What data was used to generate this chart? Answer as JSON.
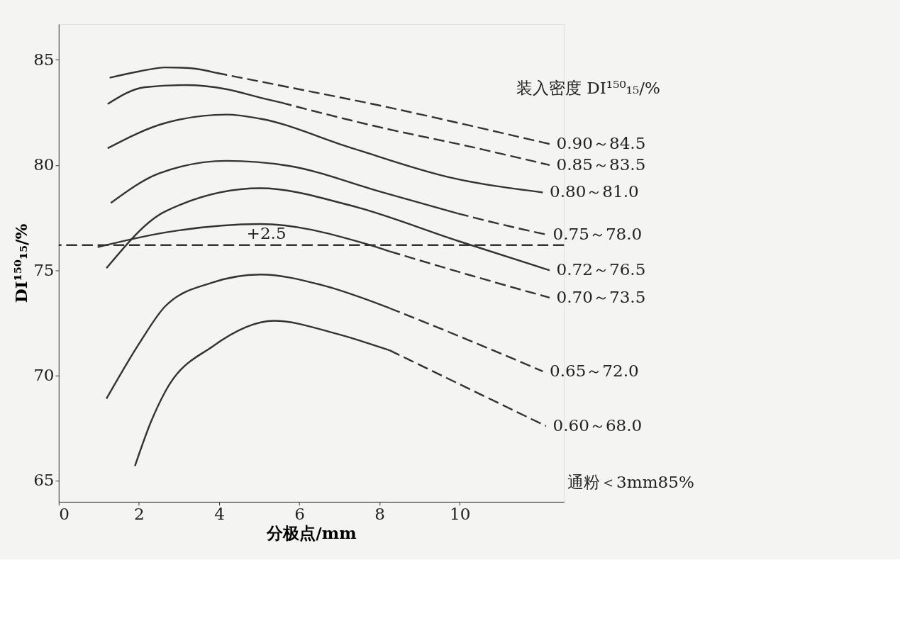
{
  "chart_data": {
    "type": "line",
    "xlabel": "分极点/mm",
    "ylabel": "DI¹⁵⁰₁₅/%",
    "legend_title": "装入密度  DI¹⁵⁰₁₅/%",
    "xlim": [
      0,
      12.6
    ],
    "ylim": [
      64,
      86.7
    ],
    "xticks": [
      0,
      2,
      4,
      6,
      8,
      10
    ],
    "yticks": [
      65,
      70,
      75,
      80,
      85
    ],
    "grid": false,
    "series": [
      {
        "color": "#333333",
        "line_style": "solid",
        "x": [
          1.27,
          2.0,
          2.66,
          3.3,
          3.93
        ],
        "values": [
          84.15,
          84.45,
          84.64,
          84.6,
          84.38
        ]
      },
      {
        "name": "0.90～84.5",
        "color": "#333333",
        "line_style": "dashed",
        "x": [
          3.93,
          6.0,
          8.08,
          10.2,
          12.24
        ],
        "values": [
          84.38,
          83.6,
          82.8,
          81.9,
          81.0
        ]
      },
      {
        "color": "#333333",
        "line_style": "solid",
        "x": [
          1.22,
          2.15,
          3.17,
          4.2,
          5.03,
          5.54
        ],
        "values": [
          82.9,
          83.7,
          83.8,
          83.6,
          83.2,
          82.97
        ]
      },
      {
        "name": "0.85～83.5",
        "color": "#333333",
        "line_style": "dashed",
        "x": [
          5.54,
          8.0,
          10.2,
          12.24
        ],
        "values": [
          82.97,
          81.8,
          80.9,
          80.0
        ]
      },
      {
        "name": "0.80～81.0",
        "color": "#333333",
        "line_style": "solid",
        "x": [
          1.22,
          2.66,
          4.19,
          5.03,
          7.24,
          9.78,
          12.07
        ],
        "values": [
          80.8,
          82.0,
          82.4,
          82.2,
          80.85,
          79.4,
          78.7
        ]
      },
      {
        "color": "#333333",
        "line_style": "solid",
        "x": [
          1.3,
          2.5,
          4.19,
          5.71,
          8.08,
          9.95
        ],
        "values": [
          78.2,
          79.6,
          80.2,
          79.97,
          78.7,
          77.7
        ]
      },
      {
        "name": "0.75～78.0",
        "color": "#333333",
        "line_style": "dashed",
        "x": [
          9.95,
          11.0,
          12.15
        ],
        "values": [
          77.7,
          77.2,
          76.7
        ]
      },
      {
        "name": "0.72～76.5",
        "color": "#333333",
        "line_style": "solid",
        "x": [
          1.19,
          2.66,
          5.03,
          7.24,
          9.95,
          12.24
        ],
        "values": [
          75.1,
          77.8,
          78.9,
          78.1,
          76.4,
          75.0
        ]
      },
      {
        "color": "#333333",
        "line_style": "solid",
        "x": [
          0.97,
          2.66,
          5.03,
          7.58,
          8.25
        ],
        "values": [
          76.1,
          76.8,
          77.2,
          76.3,
          75.9
        ]
      },
      {
        "name": "0.70～73.5",
        "color": "#333333",
        "line_style": "dashed",
        "x": [
          8.25,
          10.2,
          12.24
        ],
        "values": [
          75.9,
          74.8,
          73.7
        ]
      },
      {
        "color": "#333333",
        "line_style": "solid",
        "x": [
          1.19,
          2.0,
          2.66,
          3.8,
          5.03,
          6.56,
          8.25
        ],
        "values": [
          68.9,
          71.5,
          73.3,
          74.4,
          74.8,
          74.3,
          73.2
        ]
      },
      {
        "name": "0.65～72.0",
        "color": "#333333",
        "line_style": "dashed",
        "x": [
          8.25,
          10.2,
          12.07
        ],
        "values": [
          73.2,
          71.7,
          70.2
        ]
      },
      {
        "color": "#333333",
        "line_style": "solid",
        "x": [
          1.9,
          2.3,
          2.66,
          3.85,
          5.37,
          6.9,
          8.25
        ],
        "values": [
          65.7,
          67.8,
          69.25,
          71.4,
          72.6,
          72.0,
          71.2
        ]
      },
      {
        "name": "0.60～68.0",
        "color": "#333333",
        "line_style": "dashed",
        "x": [
          8.25,
          10.2,
          12.15
        ],
        "values": [
          71.2,
          69.4,
          67.6
        ]
      }
    ],
    "ref_lines": [
      {
        "axis": "y",
        "value": 76.2,
        "color": "#333333",
        "line_style": "dashed"
      }
    ],
    "annotations": [
      "+2.5",
      "通粉＜3mm85%"
    ]
  }
}
